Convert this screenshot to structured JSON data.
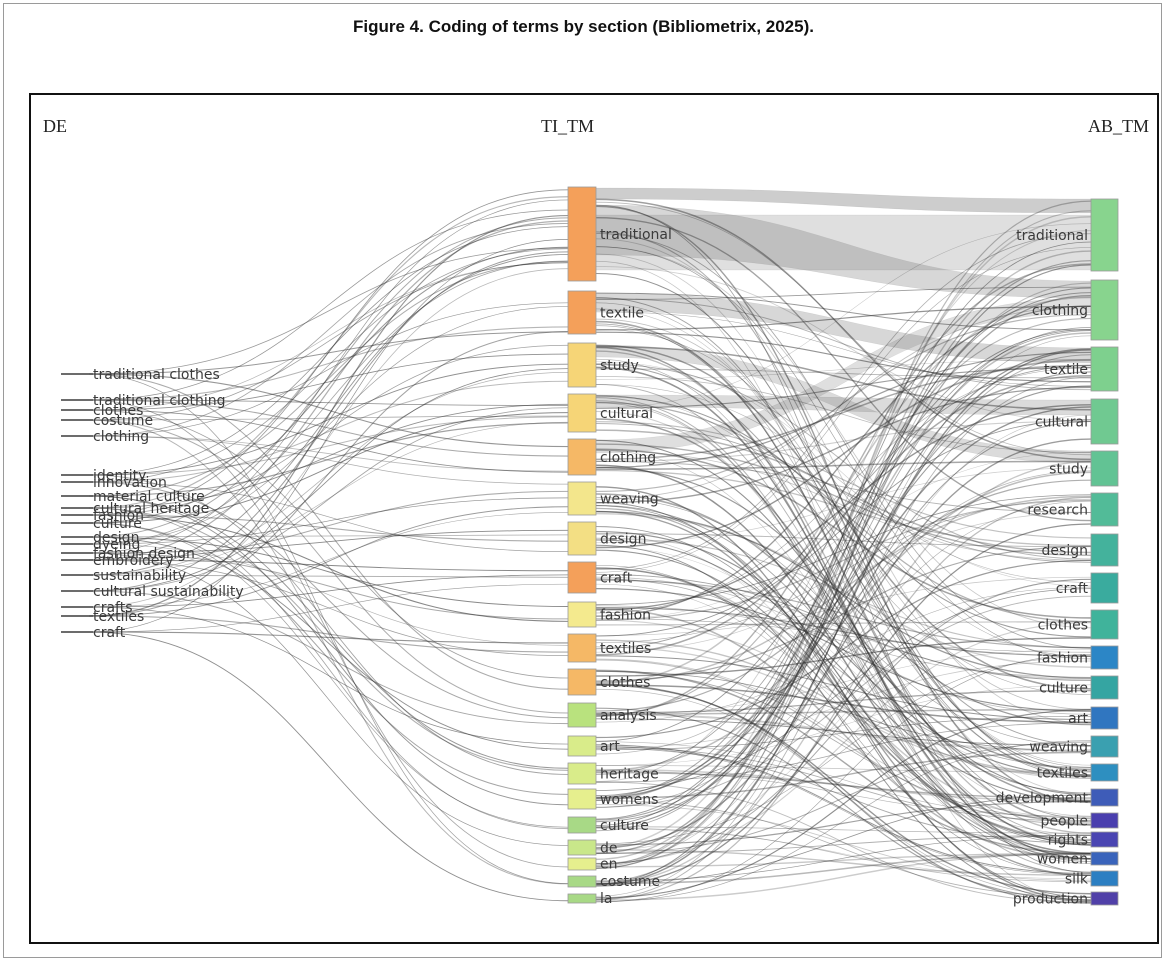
{
  "figure": {
    "caption": "Figure 4. Coding of terms by section (Bibliometrix, 2025)."
  },
  "diagram": {
    "type": "three-field sankey plot",
    "columns": {
      "left": "DE",
      "middle": "TI_TM",
      "right": "AB_TM"
    },
    "left_terms": [
      "traditional clothes",
      "traditional clothing",
      "clothes",
      "costume",
      "clothing",
      "identity",
      "innovation",
      "material culture",
      "cultural heritage",
      "fashion",
      "culture",
      "design",
      "dyeing",
      "fashion design",
      "embroidery",
      "sustainability",
      "cultural sustainability",
      "crafts",
      "textiles",
      "craft"
    ],
    "middle_terms": [
      {
        "label": "traditional",
        "color": "#f4a05a"
      },
      {
        "label": "textile",
        "color": "#f4a05a"
      },
      {
        "label": "study",
        "color": "#f6d577"
      },
      {
        "label": "cultural",
        "color": "#f6d577"
      },
      {
        "label": "clothing",
        "color": "#f5b866"
      },
      {
        "label": "weaving",
        "color": "#f3e68c"
      },
      {
        "label": "design",
        "color": "#f3df84"
      },
      {
        "label": "craft",
        "color": "#f4a05a"
      },
      {
        "label": "fashion",
        "color": "#f4ea8e"
      },
      {
        "label": "textiles",
        "color": "#f5b866"
      },
      {
        "label": "clothes",
        "color": "#f5b866"
      },
      {
        "label": "analysis",
        "color": "#b9e27e"
      },
      {
        "label": "art",
        "color": "#d9ec8a"
      },
      {
        "label": "heritage",
        "color": "#d9ec8a"
      },
      {
        "label": "womens",
        "color": "#e6ef8e"
      },
      {
        "label": "culture",
        "color": "#a8d986"
      },
      {
        "label": "de",
        "color": "#c9e78a"
      },
      {
        "label": "en",
        "color": "#e6ef8e"
      },
      {
        "label": "costume",
        "color": "#a8d986"
      },
      {
        "label": "la",
        "color": "#a8d986"
      }
    ],
    "right_terms": [
      {
        "label": "traditional",
        "color": "#88d48e"
      },
      {
        "label": "clothing",
        "color": "#88d48e"
      },
      {
        "label": "textile",
        "color": "#7ed08e"
      },
      {
        "label": "cultural",
        "color": "#70c991"
      },
      {
        "label": "study",
        "color": "#62c394"
      },
      {
        "label": "research",
        "color": "#52bb98"
      },
      {
        "label": "design",
        "color": "#44b29c"
      },
      {
        "label": "craft",
        "color": "#3aab9e"
      },
      {
        "label": "clothes",
        "color": "#40b39b"
      },
      {
        "label": "fashion",
        "color": "#2c86c6"
      },
      {
        "label": "culture",
        "color": "#35a5a2"
      },
      {
        "label": "art",
        "color": "#3076c0"
      },
      {
        "label": "weaving",
        "color": "#3aa0b0"
      },
      {
        "label": "textiles",
        "color": "#2e8fc0"
      },
      {
        "label": "development",
        "color": "#3e5cb8"
      },
      {
        "label": "people",
        "color": "#4a3fae"
      },
      {
        "label": "rights",
        "color": "#4a45b2"
      },
      {
        "label": "women",
        "color": "#3a64bb"
      },
      {
        "label": "silk",
        "color": "#2c7fc2"
      },
      {
        "label": "production",
        "color": "#5040a8"
      }
    ]
  }
}
